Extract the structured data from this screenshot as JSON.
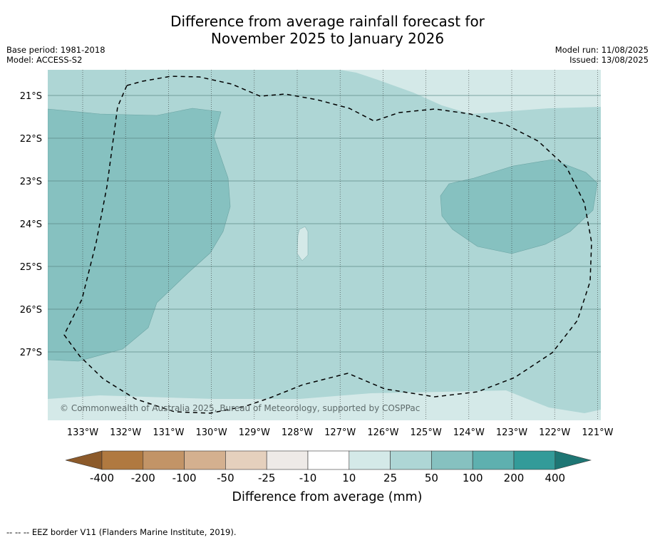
{
  "title": {
    "line1": "Difference from average rainfall forecast for",
    "line2": "November 2025 to January 2026"
  },
  "meta_left": {
    "base_period": "Base period: 1981-2018",
    "model": "Model: ACCESS-S2"
  },
  "meta_right": {
    "model_run": "Model run: 11/08/2025",
    "issued": "Issued: 13/08/2025"
  },
  "map": {
    "lon_labels": [
      "133°W",
      "132°W",
      "131°W",
      "130°W",
      "129°W",
      "128°W",
      "127°W",
      "126°W",
      "125°W",
      "124°W",
      "123°W",
      "122°W",
      "121°W"
    ],
    "lat_labels": [
      "21°S",
      "22°S",
      "23°S",
      "24°S",
      "25°S",
      "26°S",
      "27°S"
    ],
    "copyright": "© Commonwealth of Australia 2025, Bureau of Meteorology, supported by COSPPac",
    "boundary": "EEZ border (dashed)"
  },
  "legend": {
    "ticks": [
      "-400",
      "-200",
      "-100",
      "-50",
      "-25",
      "-10",
      "10",
      "25",
      "50",
      "100",
      "200",
      "400"
    ],
    "colors": [
      "#8c5a2a",
      "#b07940",
      "#c29467",
      "#d4b08f",
      "#e5d0bd",
      "#eeeae7",
      "#ffffff",
      "#d4e9e8",
      "#aed6d5",
      "#86c1c0",
      "#5eb0af",
      "#339b99",
      "#1e7674"
    ],
    "label": "Difference from average (mm)"
  },
  "footer": "--  --  -- EEZ border V11 (Flanders Marine Institute, 2019)."
}
